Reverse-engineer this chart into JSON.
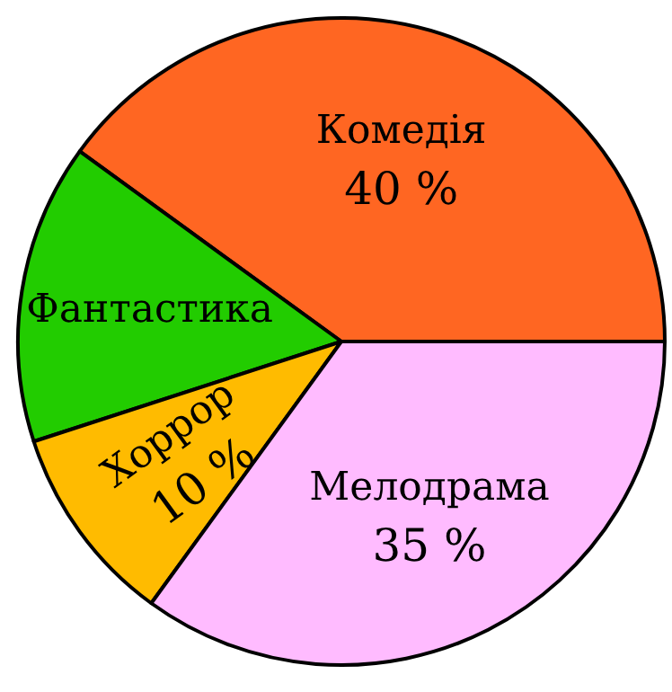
{
  "chart_data": {
    "type": "pie",
    "categories": [
      "Комедія",
      "Фантастика",
      "Хоррор",
      "Мелодрама"
    ],
    "values": [
      40,
      15,
      10,
      35
    ],
    "value_labels": [
      "40 %",
      null,
      "10 %",
      "35 %"
    ],
    "colors": [
      "#ff6622",
      "#22cc00",
      "#ffbb00",
      "#ffbbff"
    ]
  }
}
